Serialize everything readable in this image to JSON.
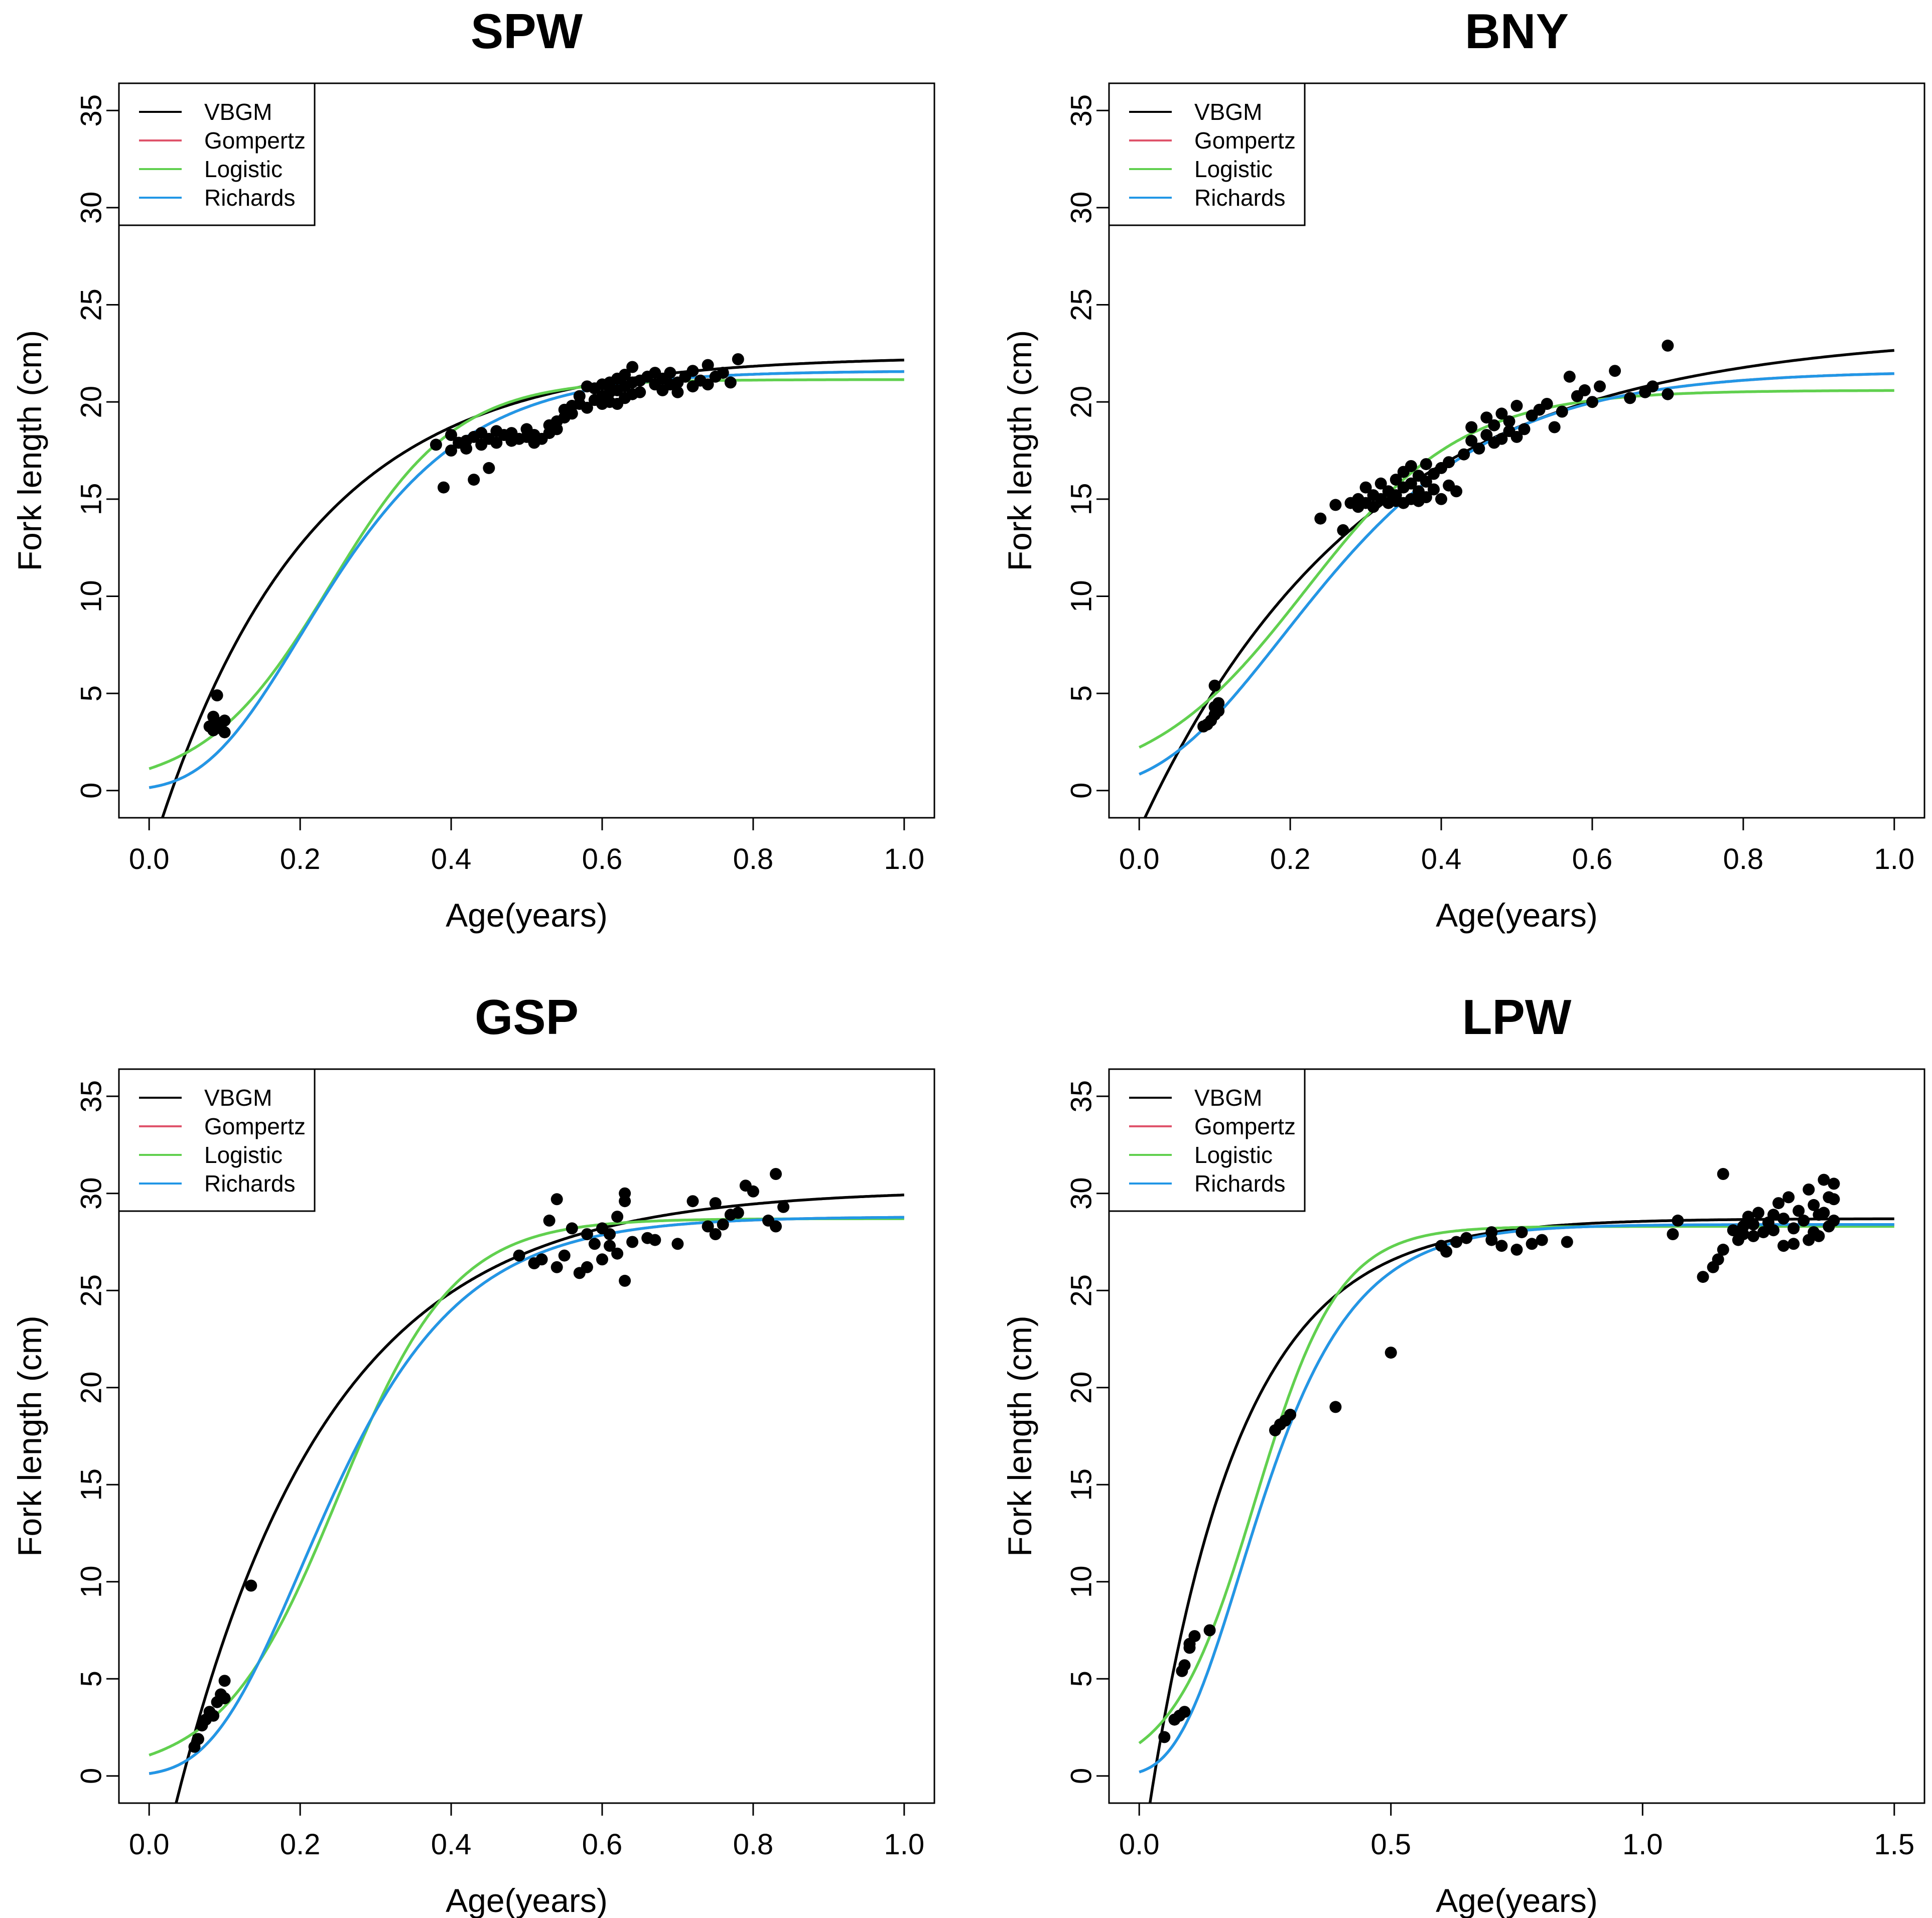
{
  "figure": {
    "colors": {
      "VBGM": "#000000",
      "Gompertz": "#DF536B",
      "Logistic": "#61D04F",
      "Richards": "#2297E6",
      "points": "#000000"
    },
    "legend_entries": [
      "VBGM",
      "Gompertz",
      "Logistic",
      "Richards"
    ]
  },
  "chart_data": [
    {
      "type": "line",
      "title": "SPW",
      "xlabel": "Age(years)",
      "ylabel": "Fork length (cm)",
      "xlim": [
        0,
        1.0
      ],
      "ylim": [
        0,
        35
      ],
      "xticks": [
        "0.0",
        "0.2",
        "0.4",
        "0.6",
        "0.8",
        "1.0"
      ],
      "xtick_values": [
        0,
        0.2,
        0.4,
        0.6,
        0.8,
        1.0
      ],
      "yticks": [
        "0",
        "5",
        "10",
        "15",
        "20",
        "25",
        "30",
        "35"
      ],
      "ytick_values": [
        0,
        5,
        10,
        15,
        20,
        25,
        30,
        35
      ],
      "legend": [
        "VBGM",
        "Gompertz",
        "Logistic",
        "Richards"
      ],
      "legend_position": "top-left",
      "models": {
        "VBGM": {
          "Linf": 22.35,
          "k": 4.9,
          "t0": 0.03
        },
        "Gompertz": {
          "Linf": 21.6,
          "k": 8.0,
          "ti": 0.2
        },
        "Logistic": {
          "Linf": 21.15,
          "k": 12.0,
          "ti": 0.24
        },
        "Richards": {
          "Linf": 21.6,
          "k": 8.0,
          "ti": 0.2
        }
      },
      "points": [
        [
          0.08,
          3.3
        ],
        [
          0.085,
          3.8
        ],
        [
          0.09,
          3.5
        ],
        [
          0.09,
          4.9
        ],
        [
          0.095,
          3.2
        ],
        [
          0.1,
          3.0
        ],
        [
          0.1,
          3.6
        ],
        [
          0.085,
          3.1
        ],
        [
          0.38,
          17.8
        ],
        [
          0.39,
          15.6
        ],
        [
          0.4,
          17.5
        ],
        [
          0.4,
          18.3
        ],
        [
          0.41,
          17.9
        ],
        [
          0.42,
          18.0
        ],
        [
          0.42,
          17.6
        ],
        [
          0.43,
          16.0
        ],
        [
          0.43,
          18.2
        ],
        [
          0.44,
          18.4
        ],
        [
          0.44,
          17.8
        ],
        [
          0.45,
          16.6
        ],
        [
          0.45,
          18.1
        ],
        [
          0.46,
          18.5
        ],
        [
          0.46,
          17.9
        ],
        [
          0.47,
          18.3
        ],
        [
          0.48,
          18.0
        ],
        [
          0.48,
          18.4
        ],
        [
          0.49,
          18.1
        ],
        [
          0.5,
          18.2
        ],
        [
          0.5,
          18.6
        ],
        [
          0.51,
          17.9
        ],
        [
          0.51,
          18.3
        ],
        [
          0.52,
          18.1
        ],
        [
          0.53,
          18.8
        ],
        [
          0.53,
          18.4
        ],
        [
          0.54,
          19.0
        ],
        [
          0.54,
          18.6
        ],
        [
          0.55,
          19.2
        ],
        [
          0.55,
          19.6
        ],
        [
          0.56,
          19.8
        ],
        [
          0.56,
          19.4
        ],
        [
          0.57,
          19.9
        ],
        [
          0.57,
          20.3
        ],
        [
          0.58,
          20.8
        ],
        [
          0.58,
          19.7
        ],
        [
          0.59,
          20.1
        ],
        [
          0.59,
          20.7
        ],
        [
          0.6,
          19.9
        ],
        [
          0.6,
          20.3
        ],
        [
          0.6,
          20.9
        ],
        [
          0.61,
          20.0
        ],
        [
          0.61,
          20.5
        ],
        [
          0.61,
          21.0
        ],
        [
          0.62,
          19.9
        ],
        [
          0.62,
          20.6
        ],
        [
          0.62,
          21.2
        ],
        [
          0.63,
          20.2
        ],
        [
          0.63,
          20.8
        ],
        [
          0.63,
          21.4
        ],
        [
          0.64,
          20.4
        ],
        [
          0.64,
          21.0
        ],
        [
          0.64,
          21.8
        ],
        [
          0.65,
          20.5
        ],
        [
          0.65,
          21.1
        ],
        [
          0.66,
          21.3
        ],
        [
          0.67,
          20.9
        ],
        [
          0.67,
          21.5
        ],
        [
          0.68,
          20.6
        ],
        [
          0.68,
          21.2
        ],
        [
          0.69,
          21.5
        ],
        [
          0.69,
          20.9
        ],
        [
          0.7,
          21.0
        ],
        [
          0.7,
          20.5
        ],
        [
          0.71,
          21.3
        ],
        [
          0.72,
          21.6
        ],
        [
          0.72,
          20.8
        ],
        [
          0.73,
          21.1
        ],
        [
          0.74,
          21.9
        ],
        [
          0.74,
          20.9
        ],
        [
          0.75,
          21.3
        ],
        [
          0.76,
          21.5
        ],
        [
          0.77,
          21.0
        ],
        [
          0.78,
          22.2
        ]
      ]
    },
    {
      "type": "line",
      "title": "BNY",
      "xlabel": "Age(years)",
      "ylabel": "Fork length (cm)",
      "xlim": [
        0,
        1.0
      ],
      "ylim": [
        0,
        35
      ],
      "xticks": [
        "0.0",
        "0.2",
        "0.4",
        "0.6",
        "0.8",
        "1.0"
      ],
      "xtick_values": [
        0,
        0.2,
        0.4,
        0.6,
        0.8,
        1.0
      ],
      "yticks": [
        "0",
        "5",
        "10",
        "15",
        "20",
        "25",
        "30",
        "35"
      ],
      "ytick_values": [
        0,
        5,
        10,
        15,
        20,
        25,
        30,
        35
      ],
      "legend": [
        "VBGM",
        "Gompertz",
        "Logistic",
        "Richards"
      ],
      "legend_position": "top-left",
      "models": {
        "VBGM": {
          "Linf": 23.6,
          "k": 3.3,
          "t0": 0.025
        },
        "Gompertz": {
          "Linf": 21.6,
          "k": 6.2,
          "ti": 0.19
        },
        "Logistic": {
          "Linf": 20.6,
          "k": 9.6,
          "ti": 0.22
        },
        "Richards": {
          "Linf": 21.6,
          "k": 6.2,
          "ti": 0.19
        }
      },
      "points": [
        [
          0.085,
          3.3
        ],
        [
          0.09,
          3.4
        ],
        [
          0.095,
          3.6
        ],
        [
          0.1,
          3.9
        ],
        [
          0.1,
          4.3
        ],
        [
          0.105,
          4.5
        ],
        [
          0.1,
          5.4
        ],
        [
          0.105,
          4.1
        ],
        [
          0.24,
          14.0
        ],
        [
          0.26,
          14.7
        ],
        [
          0.27,
          13.4
        ],
        [
          0.28,
          14.8
        ],
        [
          0.29,
          15.0
        ],
        [
          0.29,
          14.6
        ],
        [
          0.3,
          15.6
        ],
        [
          0.3,
          14.8
        ],
        [
          0.31,
          15.2
        ],
        [
          0.31,
          14.6
        ],
        [
          0.32,
          15.8
        ],
        [
          0.32,
          15.0
        ],
        [
          0.33,
          15.4
        ],
        [
          0.33,
          14.8
        ],
        [
          0.34,
          16.0
        ],
        [
          0.34,
          15.2
        ],
        [
          0.34,
          14.9
        ],
        [
          0.35,
          16.4
        ],
        [
          0.35,
          15.6
        ],
        [
          0.35,
          14.8
        ],
        [
          0.36,
          16.7
        ],
        [
          0.36,
          15.8
        ],
        [
          0.36,
          15.0
        ],
        [
          0.37,
          16.2
        ],
        [
          0.37,
          15.4
        ],
        [
          0.37,
          14.9
        ],
        [
          0.38,
          16.8
        ],
        [
          0.38,
          15.9
        ],
        [
          0.38,
          15.1
        ],
        [
          0.39,
          16.3
        ],
        [
          0.39,
          15.5
        ],
        [
          0.4,
          16.6
        ],
        [
          0.4,
          15.0
        ],
        [
          0.41,
          16.9
        ],
        [
          0.41,
          15.7
        ],
        [
          0.42,
          15.4
        ],
        [
          0.43,
          17.3
        ],
        [
          0.44,
          18.0
        ],
        [
          0.44,
          18.7
        ],
        [
          0.45,
          17.6
        ],
        [
          0.46,
          18.3
        ],
        [
          0.46,
          19.2
        ],
        [
          0.47,
          17.9
        ],
        [
          0.47,
          18.8
        ],
        [
          0.48,
          18.1
        ],
        [
          0.48,
          19.4
        ],
        [
          0.49,
          18.5
        ],
        [
          0.49,
          19.0
        ],
        [
          0.5,
          18.2
        ],
        [
          0.5,
          19.8
        ],
        [
          0.51,
          18.6
        ],
        [
          0.52,
          19.3
        ],
        [
          0.53,
          19.6
        ],
        [
          0.54,
          19.9
        ],
        [
          0.55,
          18.7
        ],
        [
          0.56,
          19.5
        ],
        [
          0.57,
          21.3
        ],
        [
          0.58,
          20.3
        ],
        [
          0.59,
          20.6
        ],
        [
          0.6,
          20.0
        ],
        [
          0.61,
          20.8
        ],
        [
          0.63,
          21.6
        ],
        [
          0.65,
          20.2
        ],
        [
          0.67,
          20.5
        ],
        [
          0.68,
          20.8
        ],
        [
          0.7,
          22.9
        ],
        [
          0.7,
          20.4
        ]
      ]
    },
    {
      "type": "line",
      "title": "GSP",
      "xlabel": "Age(years)",
      "ylabel": "Fork length (cm)",
      "xlim": [
        0,
        1.0
      ],
      "ylim": [
        0,
        35
      ],
      "xticks": [
        "0.0",
        "0.2",
        "0.4",
        "0.6",
        "0.8",
        "1.0"
      ],
      "xtick_values": [
        0,
        0.2,
        0.4,
        0.6,
        0.8,
        1.0
      ],
      "yticks": [
        "0",
        "5",
        "10",
        "15",
        "20",
        "25",
        "30",
        "35"
      ],
      "ytick_values": [
        0,
        5,
        10,
        15,
        20,
        25,
        30,
        35
      ],
      "legend": [
        "VBGM",
        "Gompertz",
        "Logistic",
        "Richards"
      ],
      "legend_position": "top-left",
      "models": {
        "VBGM": {
          "Linf": 30.2,
          "k": 4.9,
          "t0": 0.045
        },
        "Gompertz": {
          "Linf": 28.8,
          "k": 8.5,
          "ti": 0.2
        },
        "Logistic": {
          "Linf": 28.7,
          "k": 13.0,
          "ti": 0.25
        },
        "Richards": {
          "Linf": 28.8,
          "k": 8.5,
          "ti": 0.2
        }
      },
      "points": [
        [
          0.06,
          1.5
        ],
        [
          0.065,
          1.9
        ],
        [
          0.07,
          2.6
        ],
        [
          0.075,
          2.9
        ],
        [
          0.08,
          3.3
        ],
        [
          0.085,
          3.1
        ],
        [
          0.09,
          3.8
        ],
        [
          0.095,
          4.2
        ],
        [
          0.1,
          4.9
        ],
        [
          0.1,
          4.0
        ],
        [
          0.135,
          9.8
        ],
        [
          0.49,
          26.8
        ],
        [
          0.51,
          26.4
        ],
        [
          0.52,
          26.6
        ],
        [
          0.53,
          28.6
        ],
        [
          0.54,
          26.2
        ],
        [
          0.54,
          29.7
        ],
        [
          0.55,
          26.8
        ],
        [
          0.56,
          28.2
        ],
        [
          0.57,
          25.9
        ],
        [
          0.58,
          27.9
        ],
        [
          0.58,
          26.2
        ],
        [
          0.59,
          27.4
        ],
        [
          0.6,
          28.2
        ],
        [
          0.6,
          26.6
        ],
        [
          0.61,
          27.9
        ],
        [
          0.61,
          27.3
        ],
        [
          0.62,
          28.8
        ],
        [
          0.62,
          26.9
        ],
        [
          0.63,
          29.6
        ],
        [
          0.63,
          25.5
        ],
        [
          0.63,
          30.0
        ],
        [
          0.64,
          27.5
        ],
        [
          0.66,
          27.7
        ],
        [
          0.67,
          27.6
        ],
        [
          0.7,
          27.4
        ],
        [
          0.72,
          29.6
        ],
        [
          0.74,
          28.3
        ],
        [
          0.75,
          29.5
        ],
        [
          0.75,
          27.9
        ],
        [
          0.76,
          28.4
        ],
        [
          0.77,
          28.9
        ],
        [
          0.78,
          29.0
        ],
        [
          0.79,
          30.4
        ],
        [
          0.8,
          30.1
        ],
        [
          0.82,
          28.6
        ],
        [
          0.83,
          28.3
        ],
        [
          0.83,
          31.0
        ],
        [
          0.84,
          29.3
        ]
      ]
    },
    {
      "type": "line",
      "title": "LPW",
      "xlabel": "Age(years)",
      "ylabel": "Fork length (cm)",
      "xlim": [
        0,
        1.5
      ],
      "ylim": [
        0,
        35
      ],
      "xticks": [
        "0.0",
        "0.5",
        "1.0",
        "1.5"
      ],
      "xtick_values": [
        0,
        0.5,
        1.0,
        1.5
      ],
      "yticks": [
        "0",
        "5",
        "10",
        "15",
        "20",
        "25",
        "30",
        "35"
      ],
      "ytick_values": [
        0,
        5,
        10,
        15,
        20,
        25,
        30,
        35
      ],
      "legend": [
        "VBGM",
        "Gompertz",
        "Logistic",
        "Richards"
      ],
      "legend_position": "top-left",
      "models": {
        "VBGM": {
          "Linf": 28.7,
          "k": 5.5,
          "t0": 0.03
        },
        "Gompertz": {
          "Linf": 28.4,
          "k": 8.0,
          "ti": 0.2
        },
        "Logistic": {
          "Linf": 28.3,
          "k": 12.0,
          "ti": 0.23
        },
        "Richards": {
          "Linf": 28.4,
          "k": 8.0,
          "ti": 0.2
        }
      },
      "points": [
        [
          0.05,
          2.0
        ],
        [
          0.07,
          2.9
        ],
        [
          0.08,
          3.1
        ],
        [
          0.09,
          3.3
        ],
        [
          0.085,
          5.4
        ],
        [
          0.09,
          5.7
        ],
        [
          0.1,
          6.6
        ],
        [
          0.1,
          6.8
        ],
        [
          0.11,
          7.2
        ],
        [
          0.14,
          7.5
        ],
        [
          0.27,
          17.8
        ],
        [
          0.28,
          18.1
        ],
        [
          0.29,
          18.3
        ],
        [
          0.3,
          18.6
        ],
        [
          0.39,
          19.0
        ],
        [
          0.5,
          21.8
        ],
        [
          0.6,
          27.3
        ],
        [
          0.61,
          27.0
        ],
        [
          0.63,
          27.5
        ],
        [
          0.65,
          27.7
        ],
        [
          0.7,
          27.6
        ],
        [
          0.7,
          28.0
        ],
        [
          0.72,
          27.3
        ],
        [
          0.75,
          27.1
        ],
        [
          0.76,
          28.0
        ],
        [
          0.78,
          27.4
        ],
        [
          0.8,
          27.6
        ],
        [
          0.85,
          27.5
        ],
        [
          1.06,
          27.9
        ],
        [
          1.07,
          28.6
        ],
        [
          1.12,
          25.7
        ],
        [
          1.14,
          26.2
        ],
        [
          1.15,
          26.6
        ],
        [
          1.16,
          27.1
        ],
        [
          1.16,
          31.0
        ],
        [
          1.18,
          28.1
        ],
        [
          1.19,
          27.6
        ],
        [
          1.2,
          28.3
        ],
        [
          1.2,
          27.9
        ],
        [
          1.21,
          28.8
        ],
        [
          1.22,
          27.8
        ],
        [
          1.22,
          28.4
        ],
        [
          1.23,
          29.0
        ],
        [
          1.24,
          28.0
        ],
        [
          1.25,
          28.5
        ],
        [
          1.26,
          28.9
        ],
        [
          1.26,
          28.1
        ],
        [
          1.27,
          29.5
        ],
        [
          1.28,
          27.3
        ],
        [
          1.28,
          28.7
        ],
        [
          1.29,
          29.8
        ],
        [
          1.3,
          28.2
        ],
        [
          1.3,
          27.4
        ],
        [
          1.31,
          29.1
        ],
        [
          1.32,
          28.6
        ],
        [
          1.33,
          27.6
        ],
        [
          1.33,
          30.2
        ],
        [
          1.34,
          28.0
        ],
        [
          1.34,
          29.4
        ],
        [
          1.35,
          28.9
        ],
        [
          1.35,
          27.8
        ],
        [
          1.36,
          30.7
        ],
        [
          1.36,
          29.0
        ],
        [
          1.37,
          28.3
        ],
        [
          1.37,
          29.8
        ],
        [
          1.38,
          28.6
        ],
        [
          1.38,
          30.5
        ],
        [
          1.38,
          29.7
        ]
      ]
    }
  ]
}
